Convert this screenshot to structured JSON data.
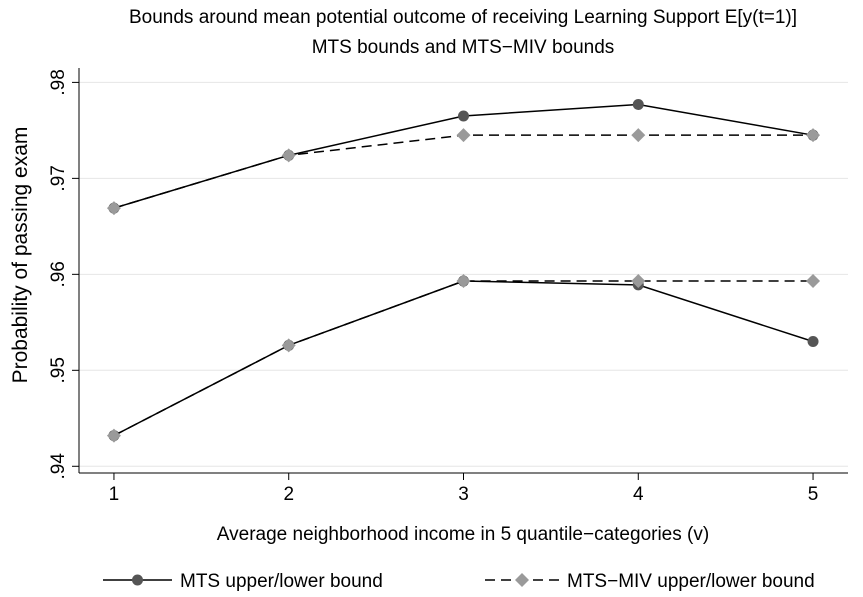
{
  "chart_data": {
    "type": "line",
    "title": "Bounds around mean potential outcome of receiving Learning Support E[y(t=1)]",
    "subtitle": "MTS bounds and MTS−MIV bounds",
    "xlabel": "Average neighborhood income in 5 quantile−categories (v)",
    "ylabel": "Probability of passing exam",
    "x": [
      1,
      2,
      3,
      4,
      5
    ],
    "x_ticks": [
      "1",
      "2",
      "3",
      "4",
      "5"
    ],
    "y_ticks": [
      ".94",
      ".95",
      ".96",
      ".97",
      ".98"
    ],
    "y_tick_values": [
      0.94,
      0.95,
      0.96,
      0.97,
      0.98
    ],
    "xlim": [
      1,
      5
    ],
    "ylim": [
      0.94,
      0.98
    ],
    "grid": true,
    "legend_position": "bottom",
    "legend": [
      "MTS upper/lower bound",
      "MTS−MIV upper/lower bound"
    ],
    "series": [
      {
        "group": 0,
        "bound": "upper",
        "style": "solid",
        "marker": "circle",
        "color": "#555555",
        "values": [
          0.9669,
          0.9724,
          0.9765,
          0.9777,
          0.9745
        ]
      },
      {
        "group": 0,
        "bound": "lower",
        "style": "solid",
        "marker": "circle",
        "color": "#555555",
        "values": [
          0.9432,
          0.9526,
          0.9593,
          0.9589,
          0.953
        ]
      },
      {
        "group": 1,
        "bound": "upper",
        "style": "dashed",
        "marker": "diamond",
        "color": "#9a9a9a",
        "values": [
          0.9669,
          0.9724,
          0.9745,
          0.9745,
          0.9745
        ]
      },
      {
        "group": 1,
        "bound": "lower",
        "style": "dashed",
        "marker": "diamond",
        "color": "#9a9a9a",
        "values": [
          0.9432,
          0.9526,
          0.9593,
          0.9593,
          0.9593
        ]
      }
    ]
  }
}
